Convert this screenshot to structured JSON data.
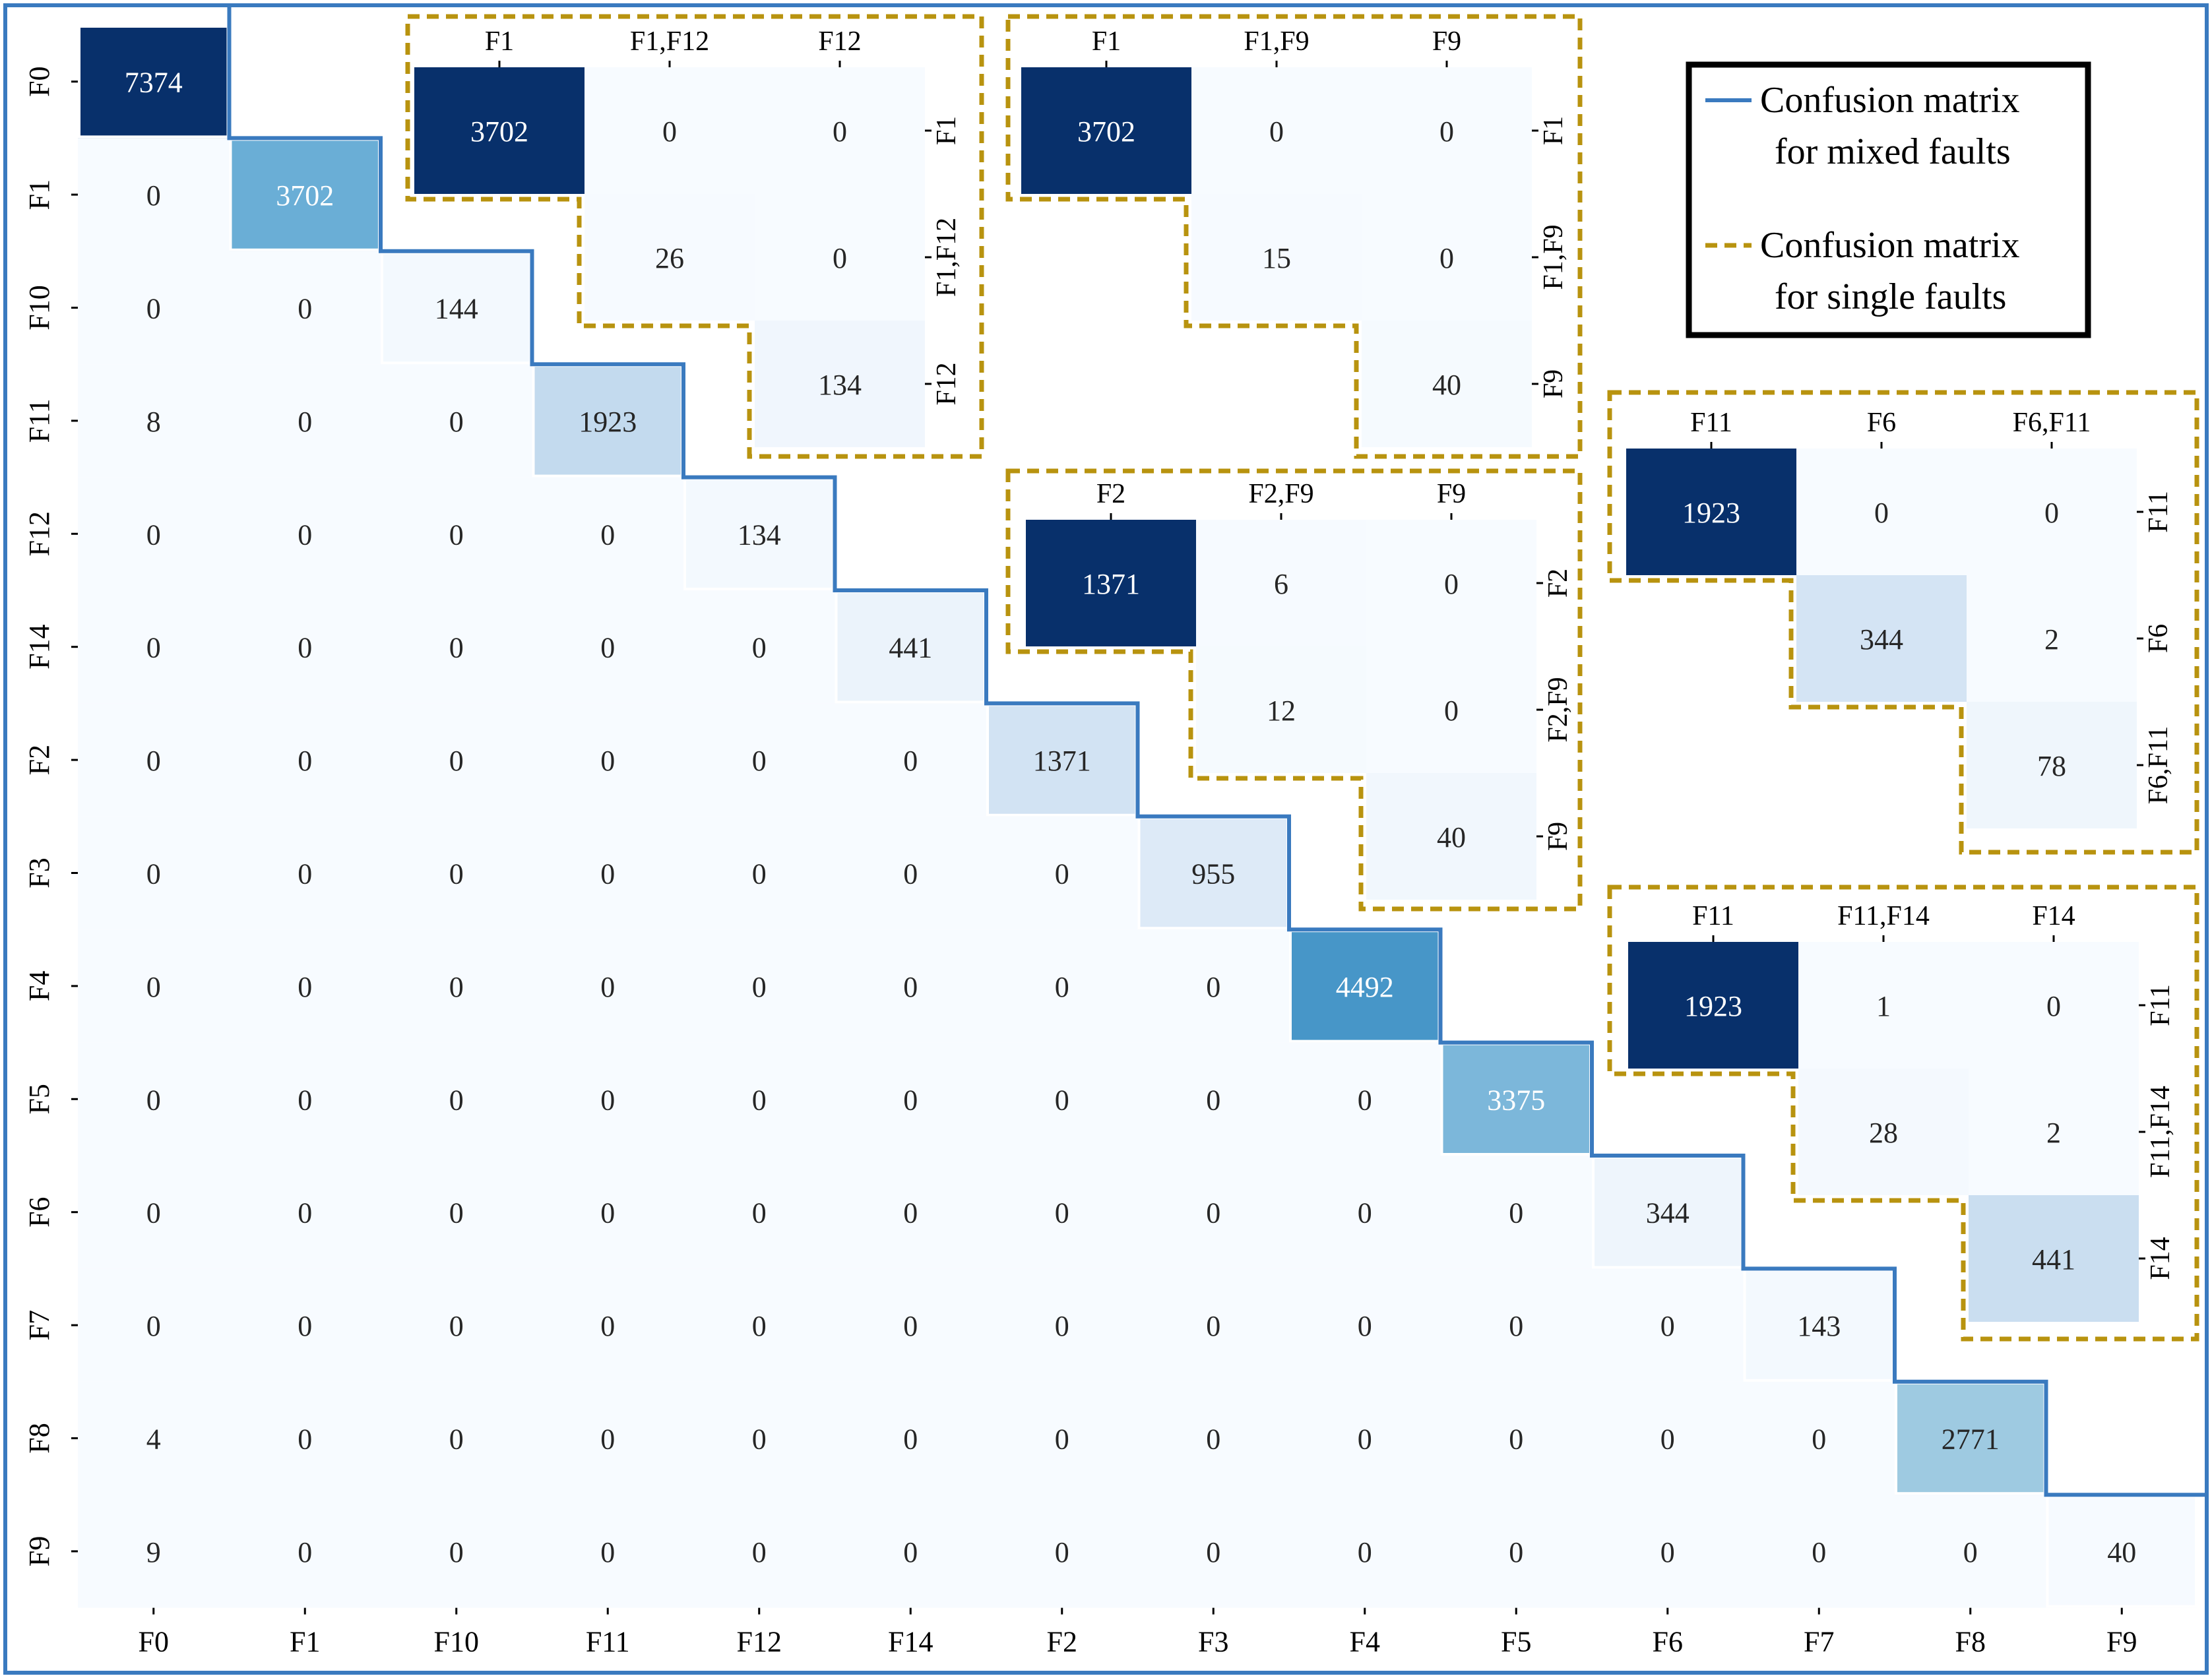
{
  "chart_data": [
    {
      "type": "heatmap",
      "title": "Confusion matrix for mixed faults",
      "x_labels": [
        "F0",
        "F1",
        "F10",
        "F11",
        "F12",
        "F14",
        "F2",
        "F3",
        "F4",
        "F5",
        "F6",
        "F7",
        "F8",
        "F9"
      ],
      "y_labels": [
        "F0",
        "F1",
        "F10",
        "F11",
        "F12",
        "F14",
        "F2",
        "F3",
        "F4",
        "F5",
        "F6",
        "F7",
        "F8",
        "F9"
      ],
      "values": [
        [
          7374,
          null,
          null,
          null,
          null,
          null,
          null,
          null,
          null,
          null,
          null,
          null,
          null,
          null
        ],
        [
          0,
          3702,
          null,
          null,
          null,
          null,
          null,
          null,
          null,
          null,
          null,
          null,
          null,
          null
        ],
        [
          0,
          0,
          144,
          null,
          null,
          null,
          null,
          null,
          null,
          null,
          null,
          null,
          null,
          null
        ],
        [
          8,
          0,
          0,
          1923,
          null,
          null,
          null,
          null,
          null,
          null,
          null,
          null,
          null,
          null
        ],
        [
          0,
          0,
          0,
          0,
          134,
          null,
          null,
          null,
          null,
          null,
          null,
          null,
          null,
          null
        ],
        [
          0,
          0,
          0,
          0,
          0,
          441,
          null,
          null,
          null,
          null,
          null,
          null,
          null,
          null
        ],
        [
          0,
          0,
          0,
          0,
          0,
          0,
          1371,
          null,
          null,
          null,
          null,
          null,
          null,
          null
        ],
        [
          0,
          0,
          0,
          0,
          0,
          0,
          0,
          955,
          null,
          null,
          null,
          null,
          null,
          null
        ],
        [
          0,
          0,
          0,
          0,
          0,
          0,
          0,
          0,
          4492,
          null,
          null,
          null,
          null,
          null
        ],
        [
          0,
          0,
          0,
          0,
          0,
          0,
          0,
          0,
          0,
          3375,
          null,
          null,
          null,
          null
        ],
        [
          0,
          0,
          0,
          0,
          0,
          0,
          0,
          0,
          0,
          0,
          344,
          null,
          null,
          null
        ],
        [
          0,
          0,
          0,
          0,
          0,
          0,
          0,
          0,
          0,
          0,
          0,
          143,
          null,
          null
        ],
        [
          4,
          0,
          0,
          0,
          0,
          0,
          0,
          0,
          0,
          0,
          0,
          0,
          2771,
          null
        ],
        [
          9,
          0,
          0,
          0,
          0,
          0,
          0,
          0,
          0,
          0,
          0,
          0,
          0,
          40
        ]
      ],
      "vmax": 7374
    },
    {
      "type": "heatmap",
      "title": "Confusion matrix for single faults",
      "x_labels": [
        "F1",
        "F1,F12",
        "F12"
      ],
      "y_labels": [
        "F1",
        "F1,F12",
        "F12"
      ],
      "values": [
        [
          3702,
          0,
          0
        ],
        [
          null,
          26,
          0
        ],
        [
          null,
          null,
          134
        ]
      ],
      "vmax": 3702
    },
    {
      "type": "heatmap",
      "title": "Confusion matrix for single faults",
      "x_labels": [
        "F1",
        "F1,F9",
        "F9"
      ],
      "y_labels": [
        "F1",
        "F1,F9",
        "F9"
      ],
      "values": [
        [
          3702,
          0,
          0
        ],
        [
          null,
          15,
          0
        ],
        [
          null,
          null,
          40
        ]
      ],
      "vmax": 3702
    },
    {
      "type": "heatmap",
      "title": "Confusion matrix for single faults",
      "x_labels": [
        "F2",
        "F2,F9",
        "F9"
      ],
      "y_labels": [
        "F2",
        "F2,F9",
        "F9"
      ],
      "values": [
        [
          1371,
          6,
          0
        ],
        [
          null,
          12,
          0
        ],
        [
          null,
          null,
          40
        ]
      ],
      "vmax": 1371
    },
    {
      "type": "heatmap",
      "title": "Confusion matrix for single faults",
      "x_labels": [
        "F11",
        "F6",
        "F6,F11"
      ],
      "y_labels": [
        "F11",
        "F6",
        "F6,F11"
      ],
      "values": [
        [
          1923,
          0,
          0
        ],
        [
          null,
          344,
          2
        ],
        [
          null,
          null,
          78
        ]
      ],
      "vmax": 1923
    },
    {
      "type": "heatmap",
      "title": "Confusion matrix for single faults",
      "x_labels": [
        "F11",
        "F11,F14",
        "F14"
      ],
      "y_labels": [
        "F11",
        "F11,F14",
        "F14"
      ],
      "values": [
        [
          1923,
          1,
          0
        ],
        [
          null,
          28,
          2
        ],
        [
          null,
          null,
          441
        ]
      ],
      "vmax": 1923
    }
  ],
  "legend": {
    "mixed_line1": "Confusion matrix",
    "mixed_line2": "for mixed faults",
    "single_line1": "Confusion matrix",
    "single_line2": "for single faults"
  },
  "colors": {
    "mixed_outline": "#3a7abf",
    "single_outline": "#b8930f",
    "cell_min": "#f7fbff",
    "cell_max": "#08306b"
  }
}
